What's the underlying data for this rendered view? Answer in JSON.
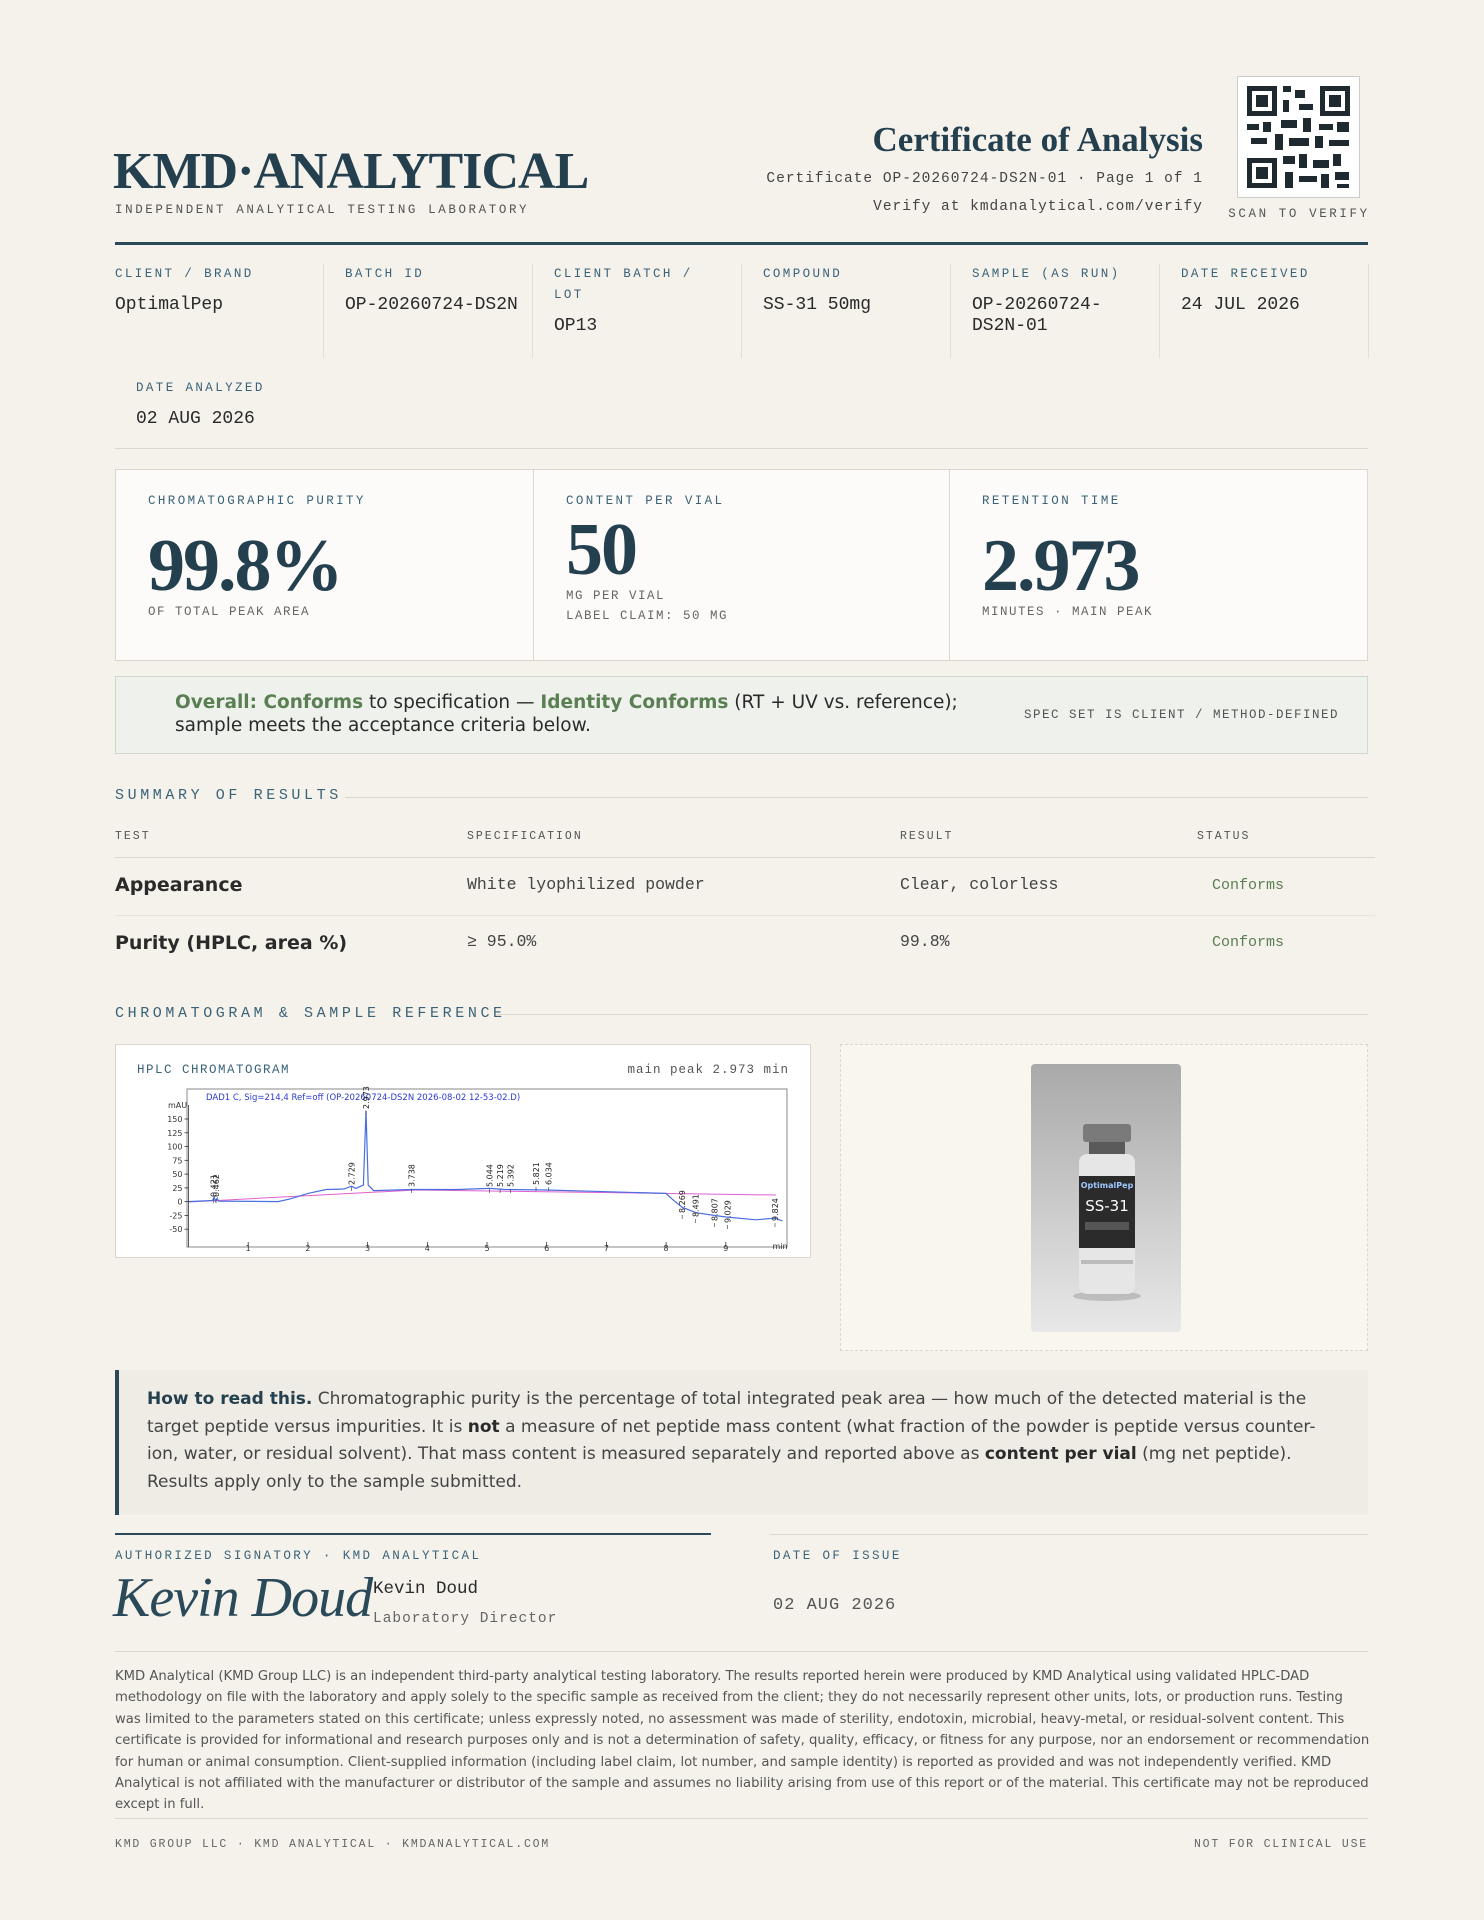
{
  "header": {
    "brand": "KMD·ANALYTICAL",
    "tagline": "INDEPENDENT ANALYTICAL TESTING LABORATORY",
    "title": "Certificate of Analysis",
    "certificate_line": "Certificate OP-20260724-DS2N-01 · Page 1 of 1",
    "verify_line": "Verify at kmdanalytical.com/verify",
    "qr_caption": "SCAN TO VERIFY"
  },
  "info": [
    {
      "label": "CLIENT / BRAND",
      "value": "OptimalPep"
    },
    {
      "label": "BATCH ID",
      "value": "OP-20260724-DS2N"
    },
    {
      "label": "CLIENT BATCH / LOT",
      "value": "OP13"
    },
    {
      "label": "COMPOUND",
      "value": "SS-31 50mg"
    },
    {
      "label": "SAMPLE (AS RUN)",
      "value": "OP-20260724-DS2N-01"
    },
    {
      "label": "DATE RECEIVED",
      "value": "24 JUL 2026"
    },
    {
      "label": "DATE ANALYZED",
      "value": "02 AUG 2026"
    }
  ],
  "metrics": [
    {
      "label": "CHROMATOGRAPHIC PURITY",
      "value": "99.8%",
      "notes": [
        "OF TOTAL PEAK AREA"
      ]
    },
    {
      "label": "CONTENT PER VIAL",
      "value": "50",
      "notes": [
        "MG PER VIAL",
        "LABEL CLAIM: 50 MG"
      ]
    },
    {
      "label": "RETENTION TIME",
      "value": "2.973",
      "notes": [
        "MINUTES · MAIN PEAK"
      ]
    }
  ],
  "overall": {
    "verdict": "Overall: Conforms",
    "text1": "to specification —",
    "identity": "Identity Conforms",
    "text2": "(RT + UV vs. reference); sample meets the acceptance criteria below.",
    "note": "SPEC SET IS CLIENT / METHOD-DEFINED"
  },
  "summary": {
    "heading": "SUMMARY OF RESULTS",
    "columns": [
      "TEST",
      "SPECIFICATION",
      "RESULT",
      "STATUS"
    ],
    "rows": [
      [
        "Appearance",
        "White lyophilized powder",
        "Clear, colorless",
        "Conforms"
      ],
      [
        "Purity (HPLC, area %)",
        "≥ 95.0%",
        "99.8%",
        "Conforms"
      ]
    ]
  },
  "chromatogram": {
    "heading": "CHROMATOGRAM & SAMPLE REFERENCE",
    "panel_title": "HPLC CHROMATOGRAM",
    "panel_note": "main peak 2.973 min",
    "trace_title": "DAD1 C, Sig=214,4 Ref=off (OP-20260724-DS2N 2026-08-02 12-53-02.D)",
    "y_label": "mAU",
    "x_label": "min",
    "xlim": [
      0,
      10
    ],
    "ylim": [
      -60,
      200
    ],
    "yticks": [
      150,
      125,
      100,
      75,
      50,
      25,
      0,
      -25,
      -50
    ],
    "xticks": [
      1,
      2,
      3,
      4,
      5,
      6,
      7,
      8,
      9
    ],
    "peaks": [
      0.421,
      0.462,
      2.729,
      2.973,
      3.738,
      5.044,
      5.219,
      5.392,
      5.821,
      6.034,
      8.269,
      8.491,
      8.807,
      9.029,
      9.824
    ]
  },
  "photo": {
    "brand": "OptimalPep",
    "label": "SS-31"
  },
  "how_to_read": {
    "lead": "How to read this.",
    "t1": "Chromatographic purity is the percentage of total integrated peak area — how much of the detected material is the target peptide versus impurities. It is",
    "b1": "not",
    "t2": "a measure of net peptide mass content (what fraction of the powder is peptide versus counter-ion, water, or residual solvent). That mass content is measured separately and reported above as",
    "b2": "content per vial",
    "t3": "(mg net peptide). Results apply only to the sample submitted."
  },
  "signatory": {
    "label": "AUTHORIZED SIGNATORY · KMD ANALYTICAL",
    "signature": "Kevin Doud",
    "name": "Kevin Doud",
    "role": "Laboratory Director"
  },
  "issue": {
    "label": "DATE OF ISSUE",
    "value": "02 AUG 2026"
  },
  "disclaimer": "KMD Analytical (KMD Group LLC) is an independent third-party analytical testing laboratory. The results reported herein were produced by KMD Analytical using validated HPLC-DAD methodology on file with the laboratory and apply solely to the specific sample as received from the client; they do not necessarily represent other units, lots, or production runs. Testing was limited to the parameters stated on this certificate; unless expressly noted, no assessment was made of sterility, endotoxin, microbial, heavy-metal, or residual-solvent content. This certificate is provided for informational and research purposes only and is not a determination of safety, quality, efficacy, or fitness for any purpose, nor an endorsement or recommendation for human or animal consumption. Client-supplied information (including label claim, lot number, and sample identity) is reported as provided and was not independently verified. KMD Analytical is not affiliated with the manufacturer or distributor of the sample and assumes no liability arising from use of this report or of the material. This certificate may not be reproduced except in full.",
  "footer": {
    "left": "KMD GROUP LLC · KMD ANALYTICAL · KMDANALYTICAL.COM",
    "right": "NOT FOR CLINICAL USE"
  }
}
